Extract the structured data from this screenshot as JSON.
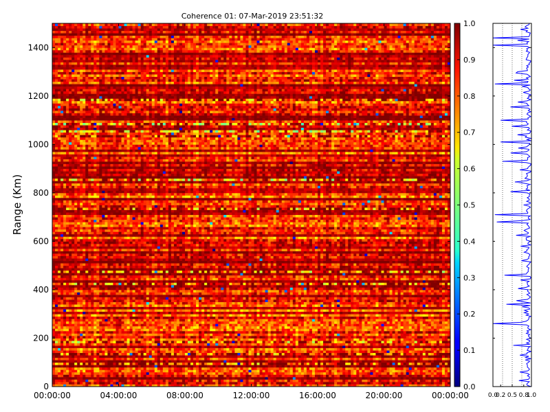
{
  "chart_data": [
    {
      "type": "heatmap",
      "title": "Coherence 01: 07-Mar-2019 23:51:32",
      "xlabel": "",
      "ylabel": "Range (Km)",
      "x_ticks": [
        "00:00:00",
        "04:00:00",
        "08:00:00",
        "12:00:00",
        "16:00:00",
        "20:00:00",
        "00:00:00"
      ],
      "y_ticks": [
        "0",
        "200",
        "400",
        "600",
        "800",
        "1000",
        "1200",
        "1400"
      ],
      "xlim": [
        "00:00:00",
        "00:00:00"
      ],
      "ylim": [
        0,
        1500
      ],
      "colormap": "jet",
      "clim": [
        0,
        1
      ],
      "description_values": "coherence per range gate vs time; mostly 0.8-1.0 with scattered dips",
      "mean_level": 0.88,
      "grid": false
    },
    {
      "type": "colorbar",
      "ticks": [
        "0.0",
        "0.1",
        "0.2",
        "0.3",
        "0.4",
        "0.5",
        "0.6",
        "0.7",
        "0.8",
        "0.9",
        "1.0"
      ],
      "range": [
        0,
        1
      ]
    },
    {
      "type": "line",
      "x_ticks": [
        "0.0",
        "0.2",
        "0.5",
        "0.8",
        "1.0"
      ],
      "xlim": [
        0,
        1
      ],
      "ylim": [
        0,
        1500
      ],
      "series_color": "#0000ff",
      "grid": "dotted-vertical",
      "notable_dips": [
        {
          "range_km": 1440,
          "value": 0.0
        },
        {
          "range_km": 1410,
          "value": 0.0
        },
        {
          "range_km": 1250,
          "value": 0.05
        },
        {
          "range_km": 1100,
          "value": 0.2
        },
        {
          "range_km": 1010,
          "value": 0.2
        },
        {
          "range_km": 930,
          "value": 0.25
        },
        {
          "range_km": 710,
          "value": 0.05
        },
        {
          "range_km": 680,
          "value": 0.1
        },
        {
          "range_km": 460,
          "value": 0.3
        },
        {
          "range_km": 340,
          "value": 0.35
        },
        {
          "range_km": 260,
          "value": 0.0
        }
      ]
    }
  ]
}
